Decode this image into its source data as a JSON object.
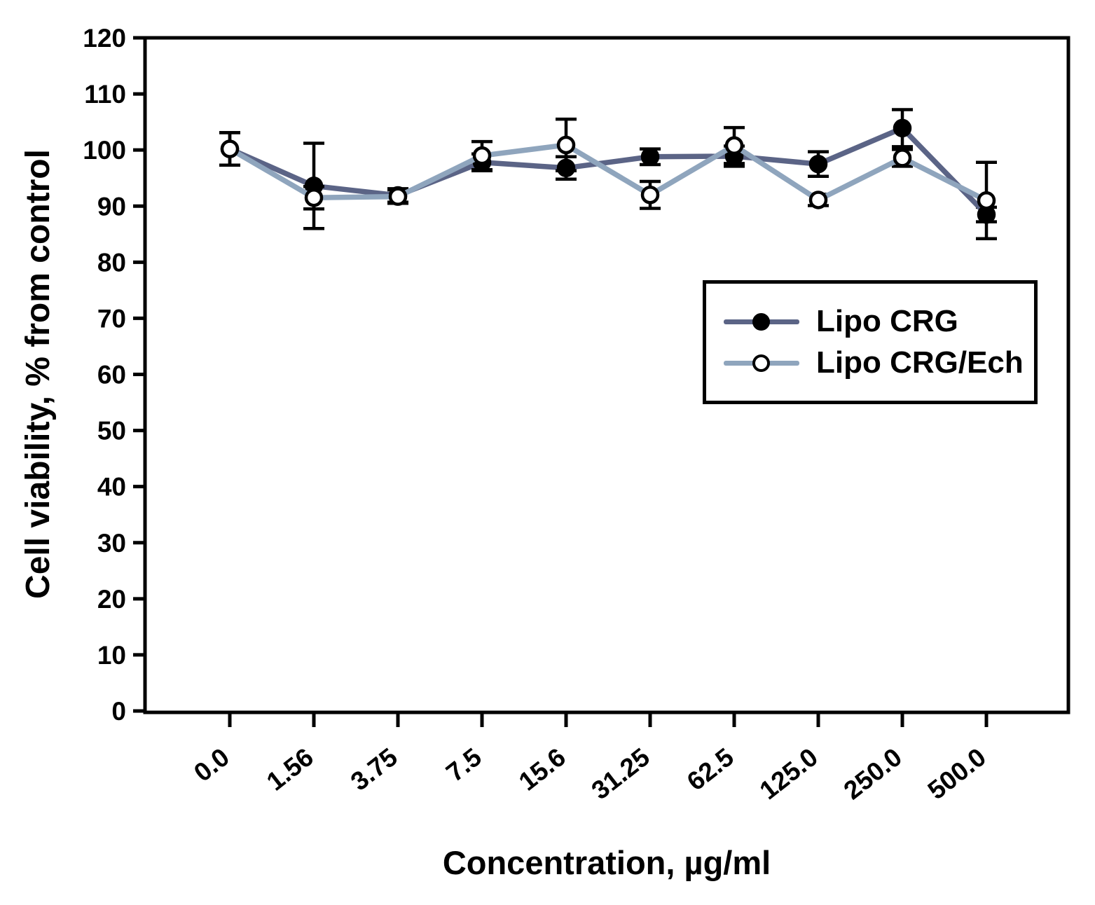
{
  "figure": {
    "background_color": "#ffffff",
    "axis_color": "#000000",
    "error_bar_color": "#000000"
  },
  "chart_data": {
    "type": "line",
    "title": "",
    "xlabel": "Concentration, µg/ml",
    "ylabel": "Cell viability, % from control",
    "categories": [
      "0.0",
      "1.56",
      "3.75",
      "7.5",
      "15.6",
      "31.25",
      "62.5",
      "125.0",
      "250.0",
      "500.0"
    ],
    "ylim": [
      0,
      120
    ],
    "y_tick_step": 10,
    "grid": false,
    "error_bars": true,
    "legend_position": "center-right",
    "series": [
      {
        "name": "Lipo CRG",
        "marker": "filled-circle",
        "line_color": "#5b6486",
        "marker_fill": "#000000",
        "marker_stroke": "#000000",
        "values": [
          100.2,
          93.6,
          91.9,
          97.8,
          96.8,
          98.8,
          98.9,
          97.5,
          103.9,
          88.5
        ],
        "errors": [
          2.9,
          7.6,
          1.2,
          1.5,
          2.0,
          1.4,
          1.8,
          2.2,
          3.3,
          1.3
        ]
      },
      {
        "name": "Lipo CRG/Ech",
        "marker": "open-circle",
        "line_color": "#8fa5bd",
        "marker_fill": "#ffffff",
        "marker_stroke": "#000000",
        "values": [
          100.2,
          91.5,
          91.7,
          99.0,
          100.9,
          92.0,
          100.8,
          91.1,
          98.6,
          91.0
        ],
        "errors": [
          2.9,
          2.0,
          1.2,
          2.5,
          4.6,
          2.4,
          3.2,
          1.0,
          1.5,
          6.8
        ]
      }
    ]
  }
}
